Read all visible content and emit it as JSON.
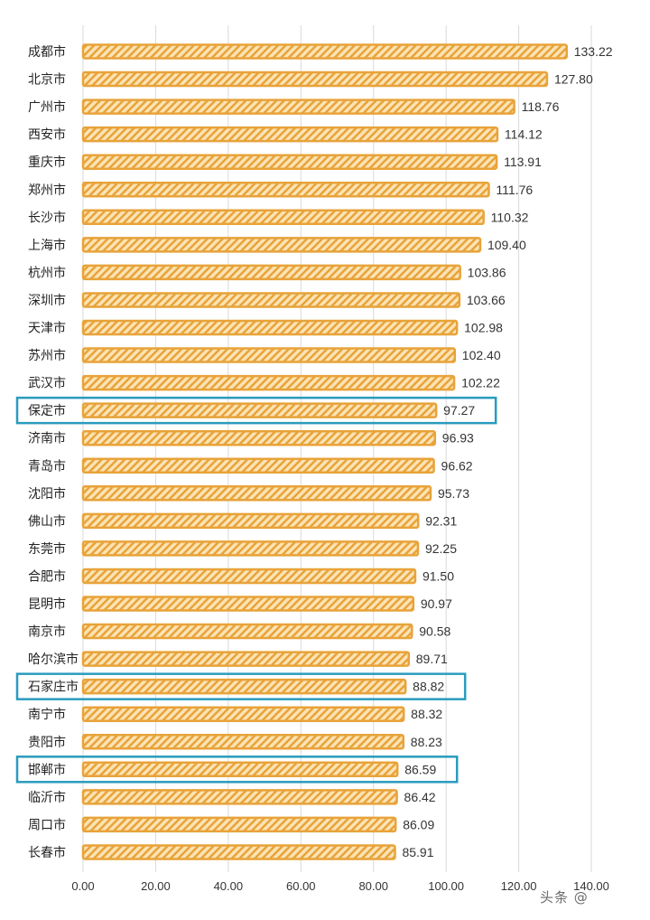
{
  "chart_data": {
    "type": "bar",
    "orientation": "horizontal",
    "categories": [
      "成都市",
      "北京市",
      "广州市",
      "西安市",
      "重庆市",
      "郑州市",
      "长沙市",
      "上海市",
      "杭州市",
      "深圳市",
      "天津市",
      "苏州市",
      "武汉市",
      "保定市",
      "济南市",
      "青岛市",
      "沈阳市",
      "佛山市",
      "东莞市",
      "合肥市",
      "昆明市",
      "南京市",
      "哈尔滨市",
      "石家庄市",
      "南宁市",
      "贵阳市",
      "邯郸市",
      "临沂市",
      "周口市",
      "长春市"
    ],
    "values": [
      133.22,
      127.8,
      118.76,
      114.12,
      113.91,
      111.76,
      110.32,
      109.4,
      103.86,
      103.66,
      102.98,
      102.4,
      102.22,
      97.27,
      96.93,
      96.62,
      95.73,
      92.31,
      92.25,
      91.5,
      90.97,
      90.58,
      89.71,
      88.82,
      88.32,
      88.23,
      86.59,
      86.42,
      86.09,
      85.91
    ],
    "value_labels": [
      "133.22",
      "127.80",
      "118.76",
      "114.12",
      "113.91",
      "111.76",
      "110.32",
      "109.40",
      "103.86",
      "103.66",
      "102.98",
      "102.40",
      "102.22",
      "97.27",
      "96.93",
      "96.62",
      "95.73",
      "92.31",
      "92.25",
      "91.50",
      "90.97",
      "90.58",
      "89.71",
      "88.82",
      "88.32",
      "88.23",
      "86.59",
      "86.42",
      "86.09",
      "85.91"
    ],
    "highlighted": [
      "保定市",
      "石家庄市",
      "邯郸市"
    ],
    "xlim": [
      0,
      140
    ],
    "xticks": [
      "0.00",
      "20.00",
      "40.00",
      "60.00",
      "80.00",
      "100.00",
      "120.00",
      "140.00"
    ],
    "grid": true,
    "bar_color": "#e8a33a",
    "bar_hatch_color": "#fbe3b4",
    "highlight_color": "#2a9bbd"
  },
  "watermark": "头条 @"
}
